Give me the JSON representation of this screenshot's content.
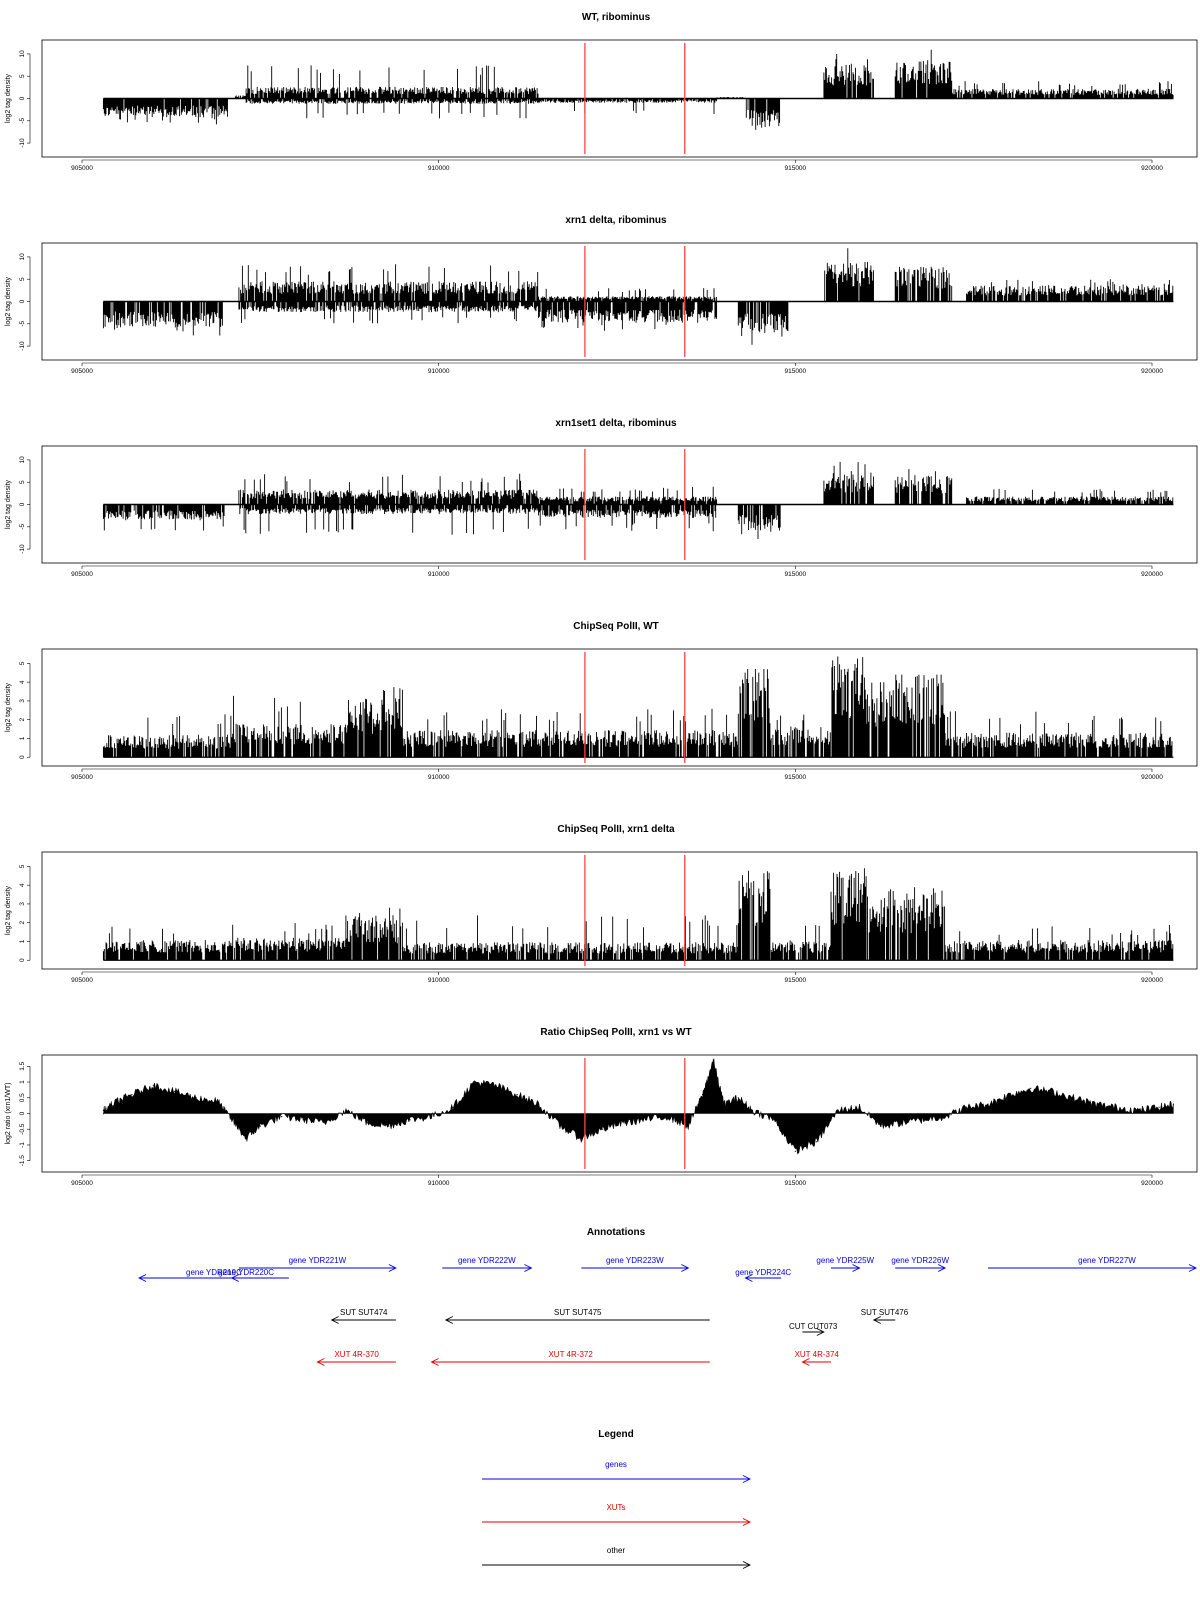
{
  "chart_data": [
    {
      "type": "bar",
      "title": "WT, ribominus",
      "xlabel": "",
      "ylabel": "log2 tag density",
      "xlim": [
        905000,
        920000
      ],
      "ylim": [
        -12,
        12
      ],
      "x_ticks": [
        905000,
        910000,
        915000,
        920000
      ],
      "y_ticks": [
        -10,
        -5,
        0,
        5,
        10
      ],
      "grid": false,
      "vlines": {
        "x": [
          912050,
          913450
        ],
        "color": "#ff4444"
      },
      "segments": [
        {
          "start": 905300,
          "end": 907050,
          "level": -3.5,
          "max": 6
        },
        {
          "start": 907150,
          "end": 907300,
          "level": 0.6,
          "max": 1.5
        },
        {
          "start": 907300,
          "end": 911400,
          "level": 2.2,
          "max": 7.5
        },
        {
          "start": 907300,
          "end": 911400,
          "level": -1.0,
          "max": 4.5
        },
        {
          "start": 911400,
          "end": 913900,
          "level": -0.8,
          "max": 3.5
        },
        {
          "start": 913900,
          "end": 914300,
          "level": 0.3,
          "max": 1
        },
        {
          "start": 914300,
          "end": 914800,
          "level": -5.5,
          "max": 10
        },
        {
          "start": 915400,
          "end": 916100,
          "level": 6.5,
          "max": 11
        },
        {
          "start": 916400,
          "end": 917200,
          "level": 7.0,
          "max": 11
        },
        {
          "start": 917200,
          "end": 920300,
          "level": 1.8,
          "max": 4
        }
      ]
    },
    {
      "type": "bar",
      "title": "xrn1 delta, ribominus",
      "xlabel": "",
      "ylabel": "log2 tag density",
      "xlim": [
        905000,
        920000
      ],
      "ylim": [
        -12,
        12
      ],
      "x_ticks": [
        905000,
        910000,
        915000,
        920000
      ],
      "y_ticks": [
        -10,
        -5,
        0,
        5,
        10
      ],
      "grid": false,
      "vlines": {
        "x": [
          912050,
          913450
        ],
        "color": "#ff4444"
      },
      "segments": [
        {
          "start": 905300,
          "end": 907000,
          "level": -5.0,
          "max": 8
        },
        {
          "start": 907200,
          "end": 911400,
          "level": 3.8,
          "max": 8.5
        },
        {
          "start": 907200,
          "end": 911400,
          "level": -2.0,
          "max": 5
        },
        {
          "start": 911400,
          "end": 913900,
          "level": -4.0,
          "max": 7
        },
        {
          "start": 911400,
          "end": 913900,
          "level": 1.0,
          "max": 3
        },
        {
          "start": 914200,
          "end": 914900,
          "level": -6.0,
          "max": 11
        },
        {
          "start": 915400,
          "end": 916100,
          "level": 7.5,
          "max": 12
        },
        {
          "start": 916400,
          "end": 917200,
          "level": 6.5,
          "max": 10
        },
        {
          "start": 917400,
          "end": 920300,
          "level": 3.0,
          "max": 5
        }
      ]
    },
    {
      "type": "bar",
      "title": "xrn1set1 delta, ribominus",
      "xlabel": "",
      "ylabel": "log2 tag density",
      "xlim": [
        905000,
        920000
      ],
      "ylim": [
        -12,
        12
      ],
      "x_ticks": [
        905000,
        910000,
        915000,
        920000
      ],
      "y_ticks": [
        -10,
        -5,
        0,
        5,
        10
      ],
      "grid": false,
      "vlines": {
        "x": [
          912050,
          913450
        ],
        "color": "#ff4444"
      },
      "segments": [
        {
          "start": 905300,
          "end": 907000,
          "level": -3.0,
          "max": 6
        },
        {
          "start": 907200,
          "end": 911400,
          "level": 2.8,
          "max": 7
        },
        {
          "start": 907200,
          "end": 911400,
          "level": -1.8,
          "max": 7
        },
        {
          "start": 911400,
          "end": 913900,
          "level": -2.5,
          "max": 6
        },
        {
          "start": 911400,
          "end": 913900,
          "level": 1.5,
          "max": 4
        },
        {
          "start": 914200,
          "end": 914800,
          "level": -5.0,
          "max": 8
        },
        {
          "start": 915400,
          "end": 916100,
          "level": 6.0,
          "max": 10
        },
        {
          "start": 916400,
          "end": 917200,
          "level": 5.5,
          "max": 9
        },
        {
          "start": 917400,
          "end": 920300,
          "level": 1.5,
          "max": 3.5
        }
      ]
    },
    {
      "type": "bar",
      "title": "ChipSeq PolII, WT",
      "xlabel": "",
      "ylabel": "log2 tag density",
      "xlim": [
        905000,
        920000
      ],
      "ylim": [
        -0.2,
        5.5
      ],
      "x_ticks": [
        905000,
        910000,
        915000,
        920000
      ],
      "y_ticks": [
        0,
        1,
        2,
        3,
        4,
        5
      ],
      "grid": false,
      "vlines": {
        "x": [
          912050,
          913450
        ],
        "color": "#ff4444"
      },
      "segments": [
        {
          "start": 905300,
          "end": 907100,
          "level": 1.0,
          "max": 2.4
        },
        {
          "start": 907100,
          "end": 908700,
          "level": 1.5,
          "max": 3.3
        },
        {
          "start": 908700,
          "end": 909500,
          "level": 2.7,
          "max": 3.8
        },
        {
          "start": 909500,
          "end": 914200,
          "level": 1.2,
          "max": 2.6
        },
        {
          "start": 914200,
          "end": 914650,
          "level": 4.0,
          "max": 4.7
        },
        {
          "start": 914650,
          "end": 915500,
          "level": 1.4,
          "max": 2.5
        },
        {
          "start": 915500,
          "end": 916000,
          "level": 4.5,
          "max": 5.5
        },
        {
          "start": 916000,
          "end": 916300,
          "level": 3.5,
          "max": 4
        },
        {
          "start": 916300,
          "end": 917100,
          "level": 3.8,
          "max": 4.4
        },
        {
          "start": 917100,
          "end": 920300,
          "level": 1.1,
          "max": 2.5
        }
      ]
    },
    {
      "type": "bar",
      "title": "ChipSeq PolII, xrn1 delta",
      "xlabel": "",
      "ylabel": "log2 tag density",
      "xlim": [
        905000,
        920000
      ],
      "ylim": [
        -0.2,
        5.5
      ],
      "x_ticks": [
        905000,
        910000,
        915000,
        920000
      ],
      "y_ticks": [
        0,
        1,
        2,
        3,
        4,
        5
      ],
      "grid": false,
      "vlines": {
        "x": [
          912050,
          913450
        ],
        "color": "#ff4444"
      },
      "segments": [
        {
          "start": 905300,
          "end": 907100,
          "level": 0.9,
          "max": 1.9
        },
        {
          "start": 907100,
          "end": 908700,
          "level": 1.0,
          "max": 2.0
        },
        {
          "start": 908700,
          "end": 909500,
          "level": 2.0,
          "max": 2.8
        },
        {
          "start": 909500,
          "end": 914200,
          "level": 0.8,
          "max": 2.4
        },
        {
          "start": 914200,
          "end": 914650,
          "level": 4.0,
          "max": 4.8
        },
        {
          "start": 914650,
          "end": 915500,
          "level": 0.9,
          "max": 2.0
        },
        {
          "start": 915500,
          "end": 916000,
          "level": 4.2,
          "max": 4.9
        },
        {
          "start": 916000,
          "end": 916300,
          "level": 3.0,
          "max": 3.5
        },
        {
          "start": 916300,
          "end": 917100,
          "level": 3.2,
          "max": 4.0
        },
        {
          "start": 917100,
          "end": 920300,
          "level": 0.9,
          "max": 1.9
        }
      ]
    },
    {
      "type": "area",
      "title": "Ratio ChipSeq PolII, xrn1 vs WT",
      "xlabel": "",
      "ylabel": "log2 ratio (xrn1/WT)",
      "xlim": [
        905000,
        920000
      ],
      "ylim": [
        -1.7,
        1.7
      ],
      "x_ticks": [
        905000,
        910000,
        915000,
        920000
      ],
      "y_ticks": [
        -1.5,
        -1,
        -0.5,
        0,
        0.5,
        1,
        1.5
      ],
      "grid": false,
      "vlines": {
        "x": [
          912050,
          913450
        ],
        "color": "#ff4444"
      },
      "x": [
        905300,
        905500,
        905700,
        906000,
        906300,
        906600,
        906900,
        907100,
        907300,
        907500,
        907800,
        908100,
        908400,
        908700,
        909000,
        909300,
        909600,
        909900,
        910200,
        910500,
        910800,
        911100,
        911400,
        911700,
        912000,
        912300,
        912600,
        912900,
        913200,
        913500,
        913700,
        913850,
        914000,
        914200,
        914400,
        914700,
        915000,
        915300,
        915600,
        915900,
        916200,
        916500,
        916800,
        917100,
        917400,
        917700,
        918000,
        918300,
        918600,
        918900,
        919200,
        919500,
        919800,
        920100,
        920300
      ],
      "y": [
        0.1,
        0.4,
        0.6,
        0.9,
        0.7,
        0.5,
        0.4,
        -0.2,
        -0.8,
        -0.4,
        -0.1,
        -0.2,
        -0.3,
        0.1,
        -0.3,
        -0.4,
        -0.2,
        -0.1,
        0.2,
        1.0,
        0.9,
        0.6,
        0.3,
        -0.4,
        -0.8,
        -0.5,
        -0.3,
        -0.2,
        -0.1,
        -0.4,
        0.6,
        1.7,
        0.3,
        0.5,
        0.1,
        -0.2,
        -1.2,
        -0.9,
        0.1,
        0.2,
        -0.4,
        -0.3,
        -0.2,
        -0.1,
        0.2,
        0.3,
        0.6,
        0.8,
        0.7,
        0.5,
        0.3,
        0.2,
        0.1,
        0.2,
        0.3
      ]
    },
    {
      "type": "table",
      "title": "Annotations",
      "xlim": [
        905000,
        920000
      ],
      "features": [
        {
          "label": "gene YDR219C",
          "row": 1,
          "start": 905800,
          "end": 907900,
          "strand": "-",
          "category": "genes"
        },
        {
          "label": "gene YDR220C",
          "row": 1,
          "start": 907100,
          "end": 907500,
          "strand": "-",
          "category": "genes"
        },
        {
          "label": "gene YDR221W",
          "row": 0,
          "start": 907200,
          "end": 909400,
          "strand": "+",
          "category": "genes"
        },
        {
          "label": "gene YDR222W",
          "row": 0,
          "start": 910050,
          "end": 911300,
          "strand": "+",
          "category": "genes"
        },
        {
          "label": "gene YDR223W",
          "row": 0,
          "start": 912000,
          "end": 913500,
          "strand": "+",
          "category": "genes"
        },
        {
          "label": "gene YDR224C",
          "row": 1,
          "start": 914300,
          "end": 914800,
          "strand": "-",
          "category": "genes"
        },
        {
          "label": "gene YDR225W",
          "row": 0,
          "start": 915500,
          "end": 915900,
          "strand": "+",
          "category": "genes"
        },
        {
          "label": "gene YDR226W",
          "row": 0,
          "start": 916400,
          "end": 917100,
          "strand": "+",
          "category": "genes"
        },
        {
          "label": "gene YDR227W",
          "row": 0,
          "start": 917700,
          "end": 920900,
          "strand": "+",
          "category": "genes"
        },
        {
          "label": "SUT SUT474",
          "row": 2,
          "start": 908500,
          "end": 909400,
          "strand": "-",
          "category": "other"
        },
        {
          "label": "SUT SUT475",
          "row": 2,
          "start": 910100,
          "end": 913800,
          "strand": "-",
          "category": "other"
        },
        {
          "label": "CUT CUT073",
          "row": 3,
          "start": 915100,
          "end": 915400,
          "strand": "+",
          "category": "other"
        },
        {
          "label": "SUT SUT476",
          "row": 2,
          "start": 916100,
          "end": 916400,
          "strand": "-",
          "category": "other"
        },
        {
          "label": "XUT 4R-370",
          "row": 4,
          "start": 908300,
          "end": 909400,
          "strand": "-",
          "category": "XUTs"
        },
        {
          "label": "XUT 4R-372",
          "row": 4,
          "start": 909900,
          "end": 913800,
          "strand": "-",
          "category": "XUTs"
        },
        {
          "label": "XUT 4R-374",
          "row": 4,
          "start": 915100,
          "end": 915500,
          "strand": "-",
          "category": "XUTs"
        }
      ],
      "category_colors": {
        "genes": "#0000dd",
        "XUTs": "#dd0000",
        "other": "#000000"
      }
    }
  ],
  "legend": {
    "title": "Legend",
    "items": [
      {
        "label": "genes",
        "color": "#0000dd"
      },
      {
        "label": "XUTs",
        "color": "#dd0000"
      },
      {
        "label": "other",
        "color": "#000000"
      }
    ]
  }
}
